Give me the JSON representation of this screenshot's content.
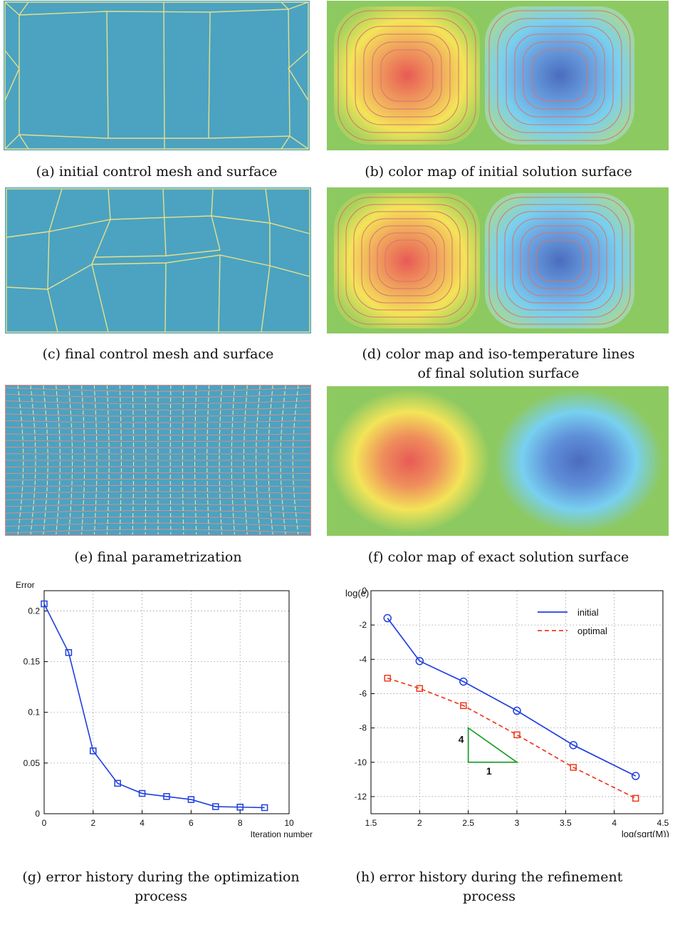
{
  "captions": {
    "a": "(a) initial control mesh and surface",
    "b": "(b) color map of initial solution surface",
    "c": "(c) final control mesh and surface",
    "d1": "(d) color map and iso-temperature lines",
    "d2": "of final solution surface",
    "e": "(e) final parametrization",
    "f": "(f) color map of exact solution surface",
    "g1": "(g) error history during the optimization",
    "g2": "process",
    "h1": "(h) error history during the refinement",
    "h2": "process"
  },
  "colors": {
    "mesh_fill": "#4ba3c1",
    "mesh_line": "#e6e08a",
    "map_background": "#8dc961",
    "hot": "#e85a55",
    "warm": "#f3e458",
    "cold": "#4b6cbe",
    "cool": "#78d0f0",
    "contour": "#d8746a",
    "series_initial": "#1f3fe0",
    "series_optimal": "#ef3a1e",
    "slope_triangle": "#1c9c2a"
  },
  "chart_data": [
    {
      "type": "line",
      "title": "",
      "xlabel": "Iteration number",
      "ylabel": "Error",
      "xlim": [
        0,
        10
      ],
      "ylim": [
        0,
        0.22
      ],
      "xticks": [
        "0",
        "2",
        "4",
        "6",
        "8",
        "10"
      ],
      "yticks": [
        "0",
        "0.05",
        "0.1",
        "0.15",
        "0.2"
      ],
      "grid": true,
      "marker": "square",
      "series": [
        {
          "x": [
            0,
            1,
            2,
            3,
            4,
            5,
            6,
            7,
            8,
            9
          ],
          "values": [
            0.207,
            0.159,
            0.062,
            0.03,
            0.02,
            0.017,
            0.014,
            0.007,
            0.0065,
            0.006
          ]
        }
      ]
    },
    {
      "type": "line",
      "title": "",
      "xlabel": "log(sqrt(M))",
      "ylabel": "log(e)",
      "xlim": [
        1.5,
        4.5
      ],
      "ylim": [
        -13,
        0
      ],
      "xticks": [
        "1.5",
        "2",
        "2.5",
        "3",
        "3.5",
        "4",
        "4.5"
      ],
      "yticks": [
        "0",
        "-2",
        "-4",
        "-6",
        "-8",
        "-10",
        "-12"
      ],
      "grid": true,
      "legend_position": "top-right",
      "series": [
        {
          "name": "initial",
          "marker": "circle",
          "line": "solid",
          "x": [
            1.67,
            2.0,
            2.45,
            3.0,
            3.58,
            4.22
          ],
          "values": [
            -1.6,
            -4.1,
            -5.3,
            -7.0,
            -9.0,
            -10.8
          ]
        },
        {
          "name": "optimal",
          "marker": "square",
          "line": "dashed",
          "x": [
            1.67,
            2.0,
            2.45,
            3.0,
            3.58,
            4.22
          ],
          "values": [
            -5.1,
            -5.7,
            -6.7,
            -8.4,
            -10.3,
            -12.1
          ]
        }
      ],
      "annotations": [
        {
          "text": "4",
          "label": "slope-triangle-vertical-leg"
        },
        {
          "text": "1",
          "label": "slope-triangle-horizontal-leg"
        }
      ],
      "slope_triangle": {
        "x0": 2.5,
        "x1": 3.0,
        "y_top": -8.0,
        "y_bottom": -10.0
      }
    }
  ]
}
